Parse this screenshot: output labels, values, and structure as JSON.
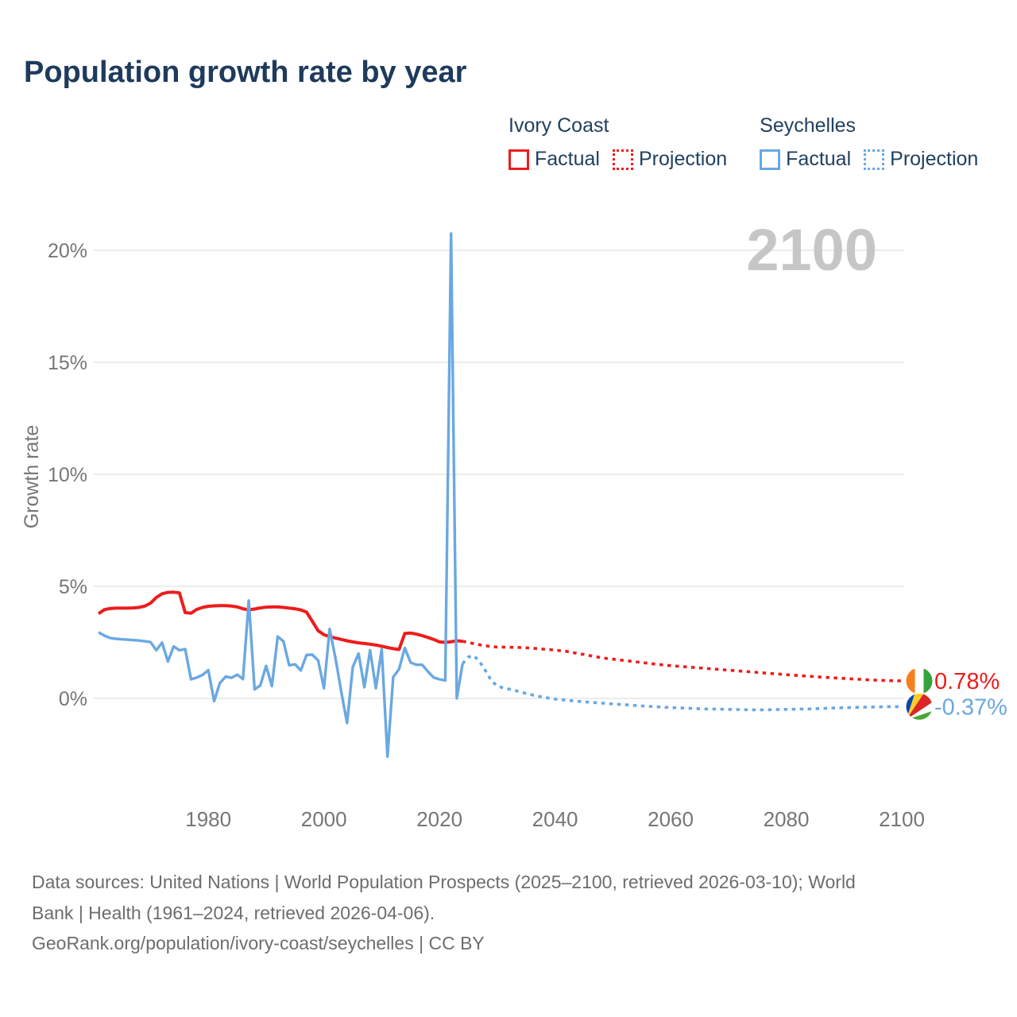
{
  "title": "Population growth rate by year",
  "legend": {
    "groups": [
      {
        "name": "Ivory Coast",
        "color": "#ee1c1c",
        "items": [
          {
            "label": "Factual",
            "style": "solid"
          },
          {
            "label": "Projection",
            "style": "dotted"
          }
        ]
      },
      {
        "name": "Seychelles",
        "color": "#6aa8e2",
        "items": [
          {
            "label": "Factual",
            "style": "solid"
          },
          {
            "label": "Projection",
            "style": "dotted"
          }
        ]
      }
    ]
  },
  "watermark": "2100",
  "chart_data": {
    "type": "line",
    "title": "Population growth rate by year",
    "xlabel": "",
    "ylabel": "Growth rate",
    "x_range": [
      1961,
      2100
    ],
    "x_ticks": [
      1980,
      2000,
      2020,
      2040,
      2060,
      2080,
      2100
    ],
    "y_gridlines": [
      0,
      5,
      10,
      15,
      20
    ],
    "y_tick_suffix": "%",
    "grid": "horizontal-only",
    "grid_color": "#ececec",
    "axis_text_color": "#767676",
    "watermark_color": "#c6c6c6",
    "series": [
      {
        "name": "Ivory Coast Factual",
        "style": "solid",
        "color": "#ee1c1c",
        "points": [
          [
            1961,
            3.78
          ],
          [
            1962,
            3.96
          ],
          [
            1963,
            4.01
          ],
          [
            1964,
            4.03
          ],
          [
            1965,
            4.03
          ],
          [
            1966,
            4.03
          ],
          [
            1967,
            4.04
          ],
          [
            1968,
            4.06
          ],
          [
            1969,
            4.12
          ],
          [
            1970,
            4.25
          ],
          [
            1971,
            4.5
          ],
          [
            1972,
            4.67
          ],
          [
            1973,
            4.73
          ],
          [
            1974,
            4.74
          ],
          [
            1975,
            4.71
          ],
          [
            1976,
            3.83
          ],
          [
            1977,
            3.8
          ],
          [
            1978,
            3.97
          ],
          [
            1979,
            4.06
          ],
          [
            1980,
            4.11
          ],
          [
            1981,
            4.13
          ],
          [
            1982,
            4.14
          ],
          [
            1983,
            4.14
          ],
          [
            1984,
            4.12
          ],
          [
            1985,
            4.08
          ],
          [
            1986,
            4.0
          ],
          [
            1987,
            3.95
          ],
          [
            1988,
            3.99
          ],
          [
            1989,
            4.04
          ],
          [
            1990,
            4.07
          ],
          [
            1991,
            4.08
          ],
          [
            1992,
            4.08
          ],
          [
            1993,
            4.06
          ],
          [
            1994,
            4.03
          ],
          [
            1995,
            4.0
          ],
          [
            1996,
            3.95
          ],
          [
            1997,
            3.85
          ],
          [
            1998,
            3.44
          ],
          [
            1999,
            3.02
          ],
          [
            2000,
            2.84
          ],
          [
            2001,
            2.76
          ],
          [
            2002,
            2.69
          ],
          [
            2003,
            2.63
          ],
          [
            2004,
            2.57
          ],
          [
            2005,
            2.52
          ],
          [
            2006,
            2.48
          ],
          [
            2007,
            2.45
          ],
          [
            2008,
            2.42
          ],
          [
            2009,
            2.38
          ],
          [
            2010,
            2.33
          ],
          [
            2011,
            2.27
          ],
          [
            2012,
            2.22
          ],
          [
            2013,
            2.18
          ],
          [
            2014,
            2.9
          ],
          [
            2015,
            2.92
          ],
          [
            2016,
            2.87
          ],
          [
            2017,
            2.8
          ],
          [
            2018,
            2.72
          ],
          [
            2019,
            2.63
          ],
          [
            2020,
            2.52
          ],
          [
            2021,
            2.5
          ],
          [
            2022,
            2.53
          ],
          [
            2023,
            2.57
          ],
          [
            2024,
            2.55
          ]
        ]
      },
      {
        "name": "Ivory Coast Projection",
        "style": "dotted",
        "color": "#ee1c1c",
        "points": [
          [
            2024,
            2.55
          ],
          [
            2025,
            2.5
          ],
          [
            2026,
            2.44
          ],
          [
            2027,
            2.39
          ],
          [
            2028,
            2.35
          ],
          [
            2029,
            2.31
          ],
          [
            2030,
            2.29
          ],
          [
            2031,
            2.29
          ],
          [
            2032,
            2.28
          ],
          [
            2033,
            2.28
          ],
          [
            2034,
            2.27
          ],
          [
            2035,
            2.26
          ],
          [
            2036,
            2.24
          ],
          [
            2037,
            2.22
          ],
          [
            2038,
            2.2
          ],
          [
            2039,
            2.18
          ],
          [
            2040,
            2.15
          ],
          [
            2041,
            2.13
          ],
          [
            2042,
            2.1
          ],
          [
            2043,
            2.05
          ],
          [
            2044,
            2.0
          ],
          [
            2045,
            1.96
          ],
          [
            2046,
            1.91
          ],
          [
            2047,
            1.86
          ],
          [
            2048,
            1.82
          ],
          [
            2049,
            1.78
          ],
          [
            2050,
            1.75
          ],
          [
            2052,
            1.69
          ],
          [
            2054,
            1.63
          ],
          [
            2056,
            1.57
          ],
          [
            2058,
            1.51
          ],
          [
            2060,
            1.46
          ],
          [
            2062,
            1.42
          ],
          [
            2064,
            1.38
          ],
          [
            2066,
            1.34
          ],
          [
            2068,
            1.3
          ],
          [
            2070,
            1.26
          ],
          [
            2072,
            1.22
          ],
          [
            2074,
            1.18
          ],
          [
            2076,
            1.14
          ],
          [
            2078,
            1.1
          ],
          [
            2080,
            1.06
          ],
          [
            2082,
            1.02
          ],
          [
            2084,
            0.99
          ],
          [
            2086,
            0.95
          ],
          [
            2088,
            0.92
          ],
          [
            2090,
            0.89
          ],
          [
            2092,
            0.86
          ],
          [
            2094,
            0.83
          ],
          [
            2096,
            0.81
          ],
          [
            2098,
            0.79
          ],
          [
            2100,
            0.78
          ]
        ]
      },
      {
        "name": "Seychelles Factual",
        "style": "solid",
        "color": "#6aa8e2",
        "points": [
          [
            1961,
            2.95
          ],
          [
            1962,
            2.8
          ],
          [
            1963,
            2.7
          ],
          [
            1964,
            2.66
          ],
          [
            1965,
            2.64
          ],
          [
            1966,
            2.62
          ],
          [
            1967,
            2.6
          ],
          [
            1968,
            2.58
          ],
          [
            1969,
            2.55
          ],
          [
            1970,
            2.51
          ],
          [
            1971,
            2.15
          ],
          [
            1972,
            2.49
          ],
          [
            1973,
            1.65
          ],
          [
            1974,
            2.32
          ],
          [
            1975,
            2.15
          ],
          [
            1976,
            2.2
          ],
          [
            1977,
            0.85
          ],
          [
            1978,
            0.93
          ],
          [
            1979,
            1.05
          ],
          [
            1980,
            1.26
          ],
          [
            1981,
            -0.12
          ],
          [
            1982,
            0.68
          ],
          [
            1983,
            0.97
          ],
          [
            1984,
            0.92
          ],
          [
            1985,
            1.06
          ],
          [
            1986,
            0.86
          ],
          [
            1987,
            4.37
          ],
          [
            1988,
            0.4
          ],
          [
            1989,
            0.58
          ],
          [
            1990,
            1.45
          ],
          [
            1991,
            0.55
          ],
          [
            1992,
            2.76
          ],
          [
            1993,
            2.55
          ],
          [
            1994,
            1.48
          ],
          [
            1995,
            1.52
          ],
          [
            1996,
            1.25
          ],
          [
            1997,
            1.94
          ],
          [
            1998,
            1.95
          ],
          [
            1999,
            1.7
          ],
          [
            2000,
            0.45
          ],
          [
            2001,
            3.1
          ],
          [
            2002,
            1.8
          ],
          [
            2003,
            0.3
          ],
          [
            2004,
            -1.1
          ],
          [
            2005,
            1.4
          ],
          [
            2006,
            2.0
          ],
          [
            2007,
            0.5
          ],
          [
            2008,
            2.15
          ],
          [
            2009,
            0.45
          ],
          [
            2010,
            2.2
          ],
          [
            2011,
            -2.6
          ],
          [
            2012,
            0.95
          ],
          [
            2013,
            1.3
          ],
          [
            2014,
            2.25
          ],
          [
            2015,
            1.6
          ],
          [
            2016,
            1.5
          ],
          [
            2017,
            1.5
          ],
          [
            2018,
            1.2
          ],
          [
            2019,
            0.93
          ],
          [
            2020,
            0.85
          ],
          [
            2021,
            0.8
          ],
          [
            2022,
            20.75
          ],
          [
            2023,
            0.0
          ],
          [
            2024,
            1.55
          ]
        ]
      },
      {
        "name": "Seychelles Projection",
        "style": "dotted",
        "color": "#6aa8e2",
        "points": [
          [
            2024,
            1.55
          ],
          [
            2025,
            1.85
          ],
          [
            2026,
            1.9
          ],
          [
            2027,
            1.62
          ],
          [
            2028,
            1.22
          ],
          [
            2029,
            0.78
          ],
          [
            2030,
            0.55
          ],
          [
            2031,
            0.47
          ],
          [
            2032,
            0.42
          ],
          [
            2033,
            0.36
          ],
          [
            2034,
            0.28
          ],
          [
            2035,
            0.22
          ],
          [
            2036,
            0.16
          ],
          [
            2037,
            0.1
          ],
          [
            2038,
            0.05
          ],
          [
            2039,
            0.01
          ],
          [
            2040,
            -0.03
          ],
          [
            2042,
            -0.08
          ],
          [
            2044,
            -0.13
          ],
          [
            2046,
            -0.17
          ],
          [
            2048,
            -0.21
          ],
          [
            2050,
            -0.25
          ],
          [
            2052,
            -0.28
          ],
          [
            2054,
            -0.32
          ],
          [
            2056,
            -0.35
          ],
          [
            2058,
            -0.38
          ],
          [
            2060,
            -0.41
          ],
          [
            2062,
            -0.43
          ],
          [
            2064,
            -0.45
          ],
          [
            2066,
            -0.47
          ],
          [
            2068,
            -0.48
          ],
          [
            2070,
            -0.49
          ],
          [
            2072,
            -0.5
          ],
          [
            2074,
            -0.51
          ],
          [
            2076,
            -0.51
          ],
          [
            2078,
            -0.5
          ],
          [
            2080,
            -0.49
          ],
          [
            2082,
            -0.48
          ],
          [
            2084,
            -0.47
          ],
          [
            2086,
            -0.45
          ],
          [
            2088,
            -0.43
          ],
          [
            2090,
            -0.42
          ],
          [
            2092,
            -0.4
          ],
          [
            2094,
            -0.39
          ],
          [
            2096,
            -0.38
          ],
          [
            2098,
            -0.37
          ],
          [
            2100,
            -0.37
          ]
        ]
      }
    ],
    "end_labels": [
      {
        "country": "Ivory Coast",
        "value": "0.78%",
        "numeric": 0.78,
        "color": "#ee1c1c",
        "flag": "ivory-coast"
      },
      {
        "country": "Seychelles",
        "value": "-0.37%",
        "numeric": -0.37,
        "color": "#6aa8e2",
        "flag": "seychelles"
      }
    ],
    "flag_colors": {
      "ivory_coast": [
        "#f77f1e",
        "#ffffff",
        "#35a23a"
      ],
      "seychelles": [
        "#0a47a9",
        "#fcd023",
        "#dc2626",
        "#ffffff",
        "#4ca635"
      ]
    }
  },
  "footer": {
    "lines": [
      "Data sources: United Nations | World Population Prospects (2025–2100, retrieved 2026-03-10); World",
      "Bank | Health (1961–2024, retrieved 2026-04-06).",
      "GeoRank.org/population/ivory-coast/seychelles | CC BY"
    ]
  }
}
